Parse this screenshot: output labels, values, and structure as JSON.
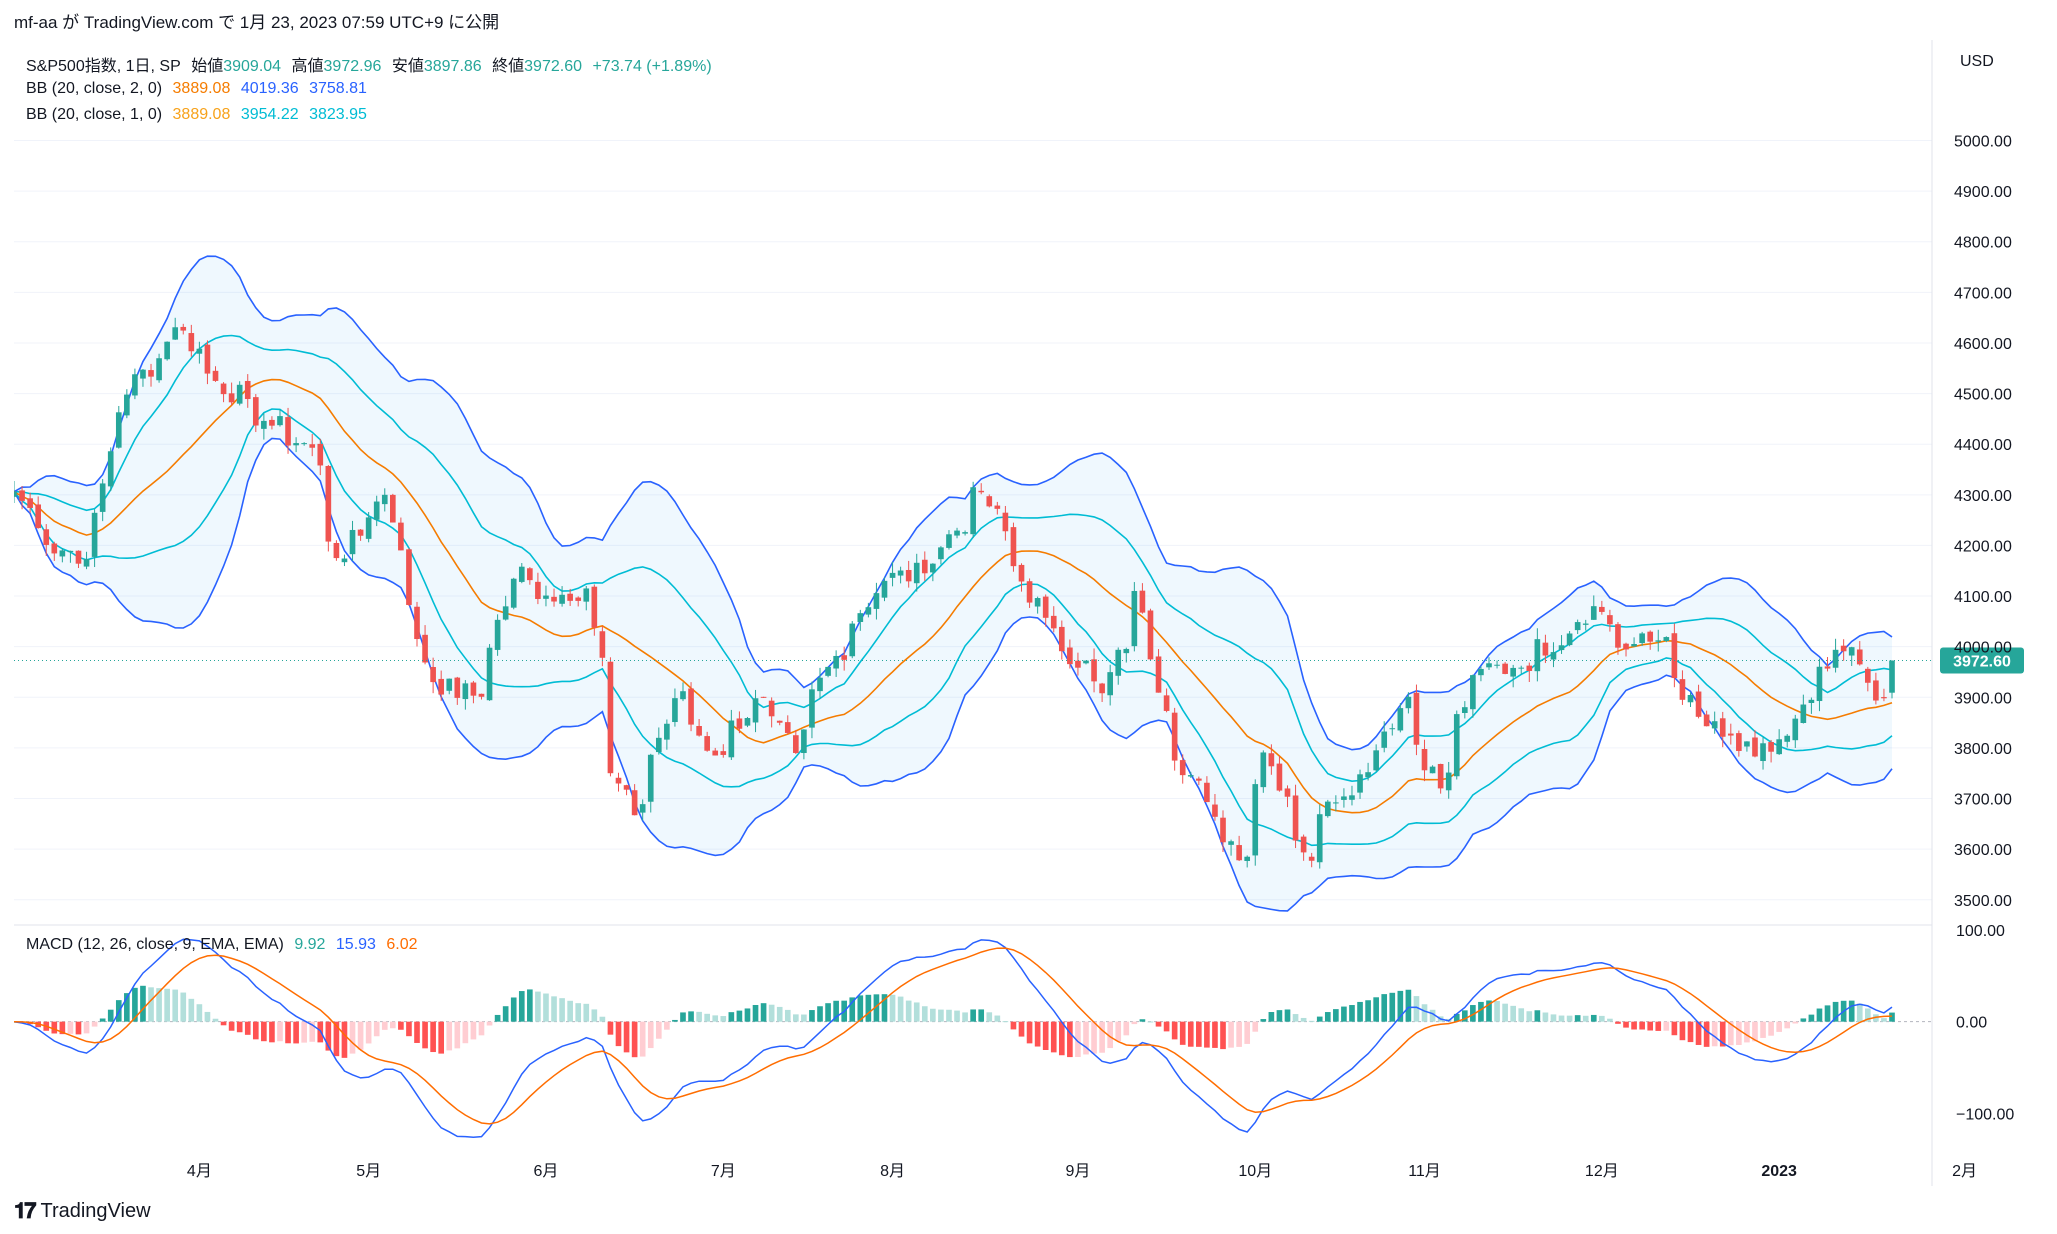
{
  "header": {
    "credit": "mf-aa が TradingView.com で 1月 23, 2023 07:59 UTC+9 に公開"
  },
  "legend": {
    "main": {
      "symbol": "S&P500指数, 1日, SP",
      "open_label": "始値",
      "open": "3909.04",
      "high_label": "高値",
      "high": "3972.96",
      "low_label": "安値",
      "low": "3897.86",
      "close_label": "終値",
      "close": "3972.60",
      "change": "+73.74 (+1.89%)"
    },
    "bb2": {
      "label": "BB (20, close, 2, 0)",
      "basis": "3889.08",
      "upper": "4019.36",
      "lower": "3758.81"
    },
    "bb1": {
      "label": "BB (20, close, 1, 0)",
      "basis": "3889.08",
      "upper": "3954.22",
      "lower": "3823.95"
    },
    "macd": {
      "label": "MACD (12, 26, close, 9, EMA, EMA)",
      "histogram": "9.92",
      "macd": "15.93",
      "signal": "6.02"
    }
  },
  "price_axis": {
    "currency": "USD",
    "ticks": [
      "5000.00",
      "4900.00",
      "4800.00",
      "4700.00",
      "4600.00",
      "4500.00",
      "4400.00",
      "4300.00",
      "4200.00",
      "4100.00",
      "4000.00",
      "3900.00",
      "3800.00",
      "3700.00",
      "3600.00",
      "3500.00"
    ],
    "last_price_label": "3972.60"
  },
  "macd_axis": {
    "ticks": [
      "100.00",
      "0.00",
      "−100.00"
    ]
  },
  "time_axis": {
    "ticks": [
      "4月",
      "5月",
      "6月",
      "7月",
      "8月",
      "9月",
      "10月",
      "11月",
      "12月",
      "2023",
      "2月"
    ]
  },
  "colors": {
    "up": "#26a69a",
    "down": "#ef5350",
    "bb_basis": "#f57c00",
    "bb2_band": "#2962ff",
    "bb1_band": "#00bcd4",
    "bb2_fill": "#2196f3",
    "macd_line": "#2962ff",
    "signal_line": "#ff6d00",
    "hist_up_strong": "#26a69a",
    "hist_up_weak": "#b2dfdb",
    "hist_down_strong": "#ff5252",
    "hist_down_weak": "#ffcdd2",
    "grid": "#f0f3fa",
    "last_price": "#26a69a"
  },
  "footer": {
    "brand": "TradingView"
  },
  "chart_data": {
    "type": "candlestick",
    "title": "S&P500指数, 1日, SP",
    "price_range": [
      3460,
      5080
    ],
    "macd_range": [
      -140,
      100
    ],
    "period": "2022-03 to 2023-01-20 (daily)",
    "close_anchors": [
      [
        "2022-03-01",
        4306
      ],
      [
        "2022-03-07",
        4201
      ],
      [
        "2022-03-14",
        4173
      ],
      [
        "2022-03-18",
        4463
      ],
      [
        "2022-03-29",
        4631
      ],
      [
        "2022-04-05",
        4525
      ],
      [
        "2022-04-13",
        4446
      ],
      [
        "2022-04-21",
        4393
      ],
      [
        "2022-04-26",
        4175
      ],
      [
        "2022-05-04",
        4300
      ],
      [
        "2022-05-12",
        3930
      ],
      [
        "2022-05-20",
        3901
      ],
      [
        "2022-05-27",
        4158
      ],
      [
        "2022-06-01",
        4101
      ],
      [
        "2022-06-08",
        4115
      ],
      [
        "2022-06-13",
        3750
      ],
      [
        "2022-06-16",
        3667
      ],
      [
        "2022-06-24",
        3912
      ],
      [
        "2022-06-30",
        3785
      ],
      [
        "2022-07-08",
        3899
      ],
      [
        "2022-07-14",
        3790
      ],
      [
        "2022-07-20",
        3960
      ],
      [
        "2022-07-29",
        4130
      ],
      [
        "2022-08-05",
        4145
      ],
      [
        "2022-08-16",
        4305
      ],
      [
        "2022-08-19",
        4228
      ],
      [
        "2022-08-26",
        4057
      ],
      [
        "2022-09-06",
        3908
      ],
      [
        "2022-09-12",
        4110
      ],
      [
        "2022-09-16",
        3873
      ],
      [
        "2022-09-23",
        3693
      ],
      [
        "2022-09-30",
        3585
      ],
      [
        "2022-10-04",
        3791
      ],
      [
        "2022-10-12",
        3577
      ],
      [
        "2022-10-13",
        3669
      ],
      [
        "2022-10-21",
        3752
      ],
      [
        "2022-10-28",
        3901
      ],
      [
        "2022-11-03",
        3720
      ],
      [
        "2022-11-10",
        3956
      ],
      [
        "2022-11-16",
        3958
      ],
      [
        "2022-11-25",
        4026
      ],
      [
        "2022-11-30",
        4080
      ],
      [
        "2022-12-05",
        3998
      ],
      [
        "2022-12-13",
        4019
      ],
      [
        "2022-12-15",
        3895
      ],
      [
        "2022-12-22",
        3822
      ],
      [
        "2022-12-28",
        3783
      ],
      [
        "2023-01-03",
        3824
      ],
      [
        "2023-01-06",
        3895
      ],
      [
        "2023-01-13",
        3999
      ],
      [
        "2023-01-19",
        3898
      ],
      [
        "2023-01-20",
        3972.6
      ]
    ],
    "last_candle": {
      "date": "2023-01-20",
      "open": 3909.04,
      "high": 3972.96,
      "low": 3897.86,
      "close": 3972.6,
      "change": 73.74,
      "change_pct": 1.89
    },
    "bollinger_2sd": {
      "basis": 3889.08,
      "upper": 4019.36,
      "lower": 3758.81
    },
    "bollinger_1sd": {
      "basis": 3889.08,
      "upper": 3954.22,
      "lower": 3823.95
    },
    "macd": {
      "histogram": 9.92,
      "macd": 15.93,
      "signal": 6.02
    }
  }
}
